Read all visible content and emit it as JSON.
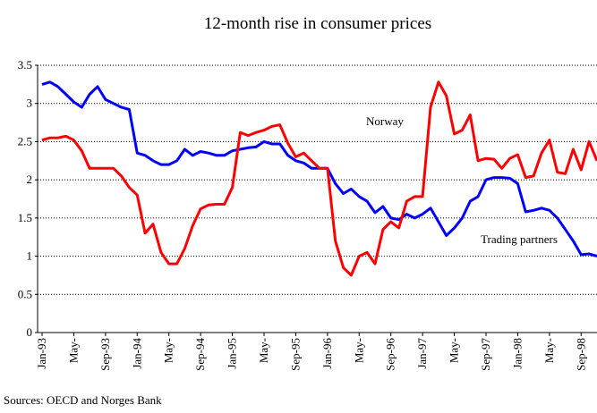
{
  "chart_data": {
    "type": "line",
    "title": "12-month rise in consumer prices",
    "source": "Sources: OECD and Norges Bank",
    "annotations": [
      "Norway",
      "Trading partners"
    ],
    "categories": [
      "Jan-93",
      null,
      null,
      null,
      "May-",
      null,
      null,
      null,
      "Sep-93",
      null,
      null,
      null,
      "Jan-94",
      null,
      null,
      null,
      "May-",
      null,
      null,
      null,
      "Sep-94",
      null,
      null,
      null,
      "Jan-95",
      null,
      null,
      null,
      "May-",
      null,
      null,
      null,
      "Sep-95",
      null,
      null,
      null,
      "Jan-96",
      null,
      null,
      null,
      "May-",
      null,
      null,
      null,
      "Sep-96",
      null,
      null,
      null,
      "Jan-97",
      null,
      null,
      null,
      "May-",
      null,
      null,
      null,
      "Sep-97",
      null,
      null,
      null,
      "Jan-98",
      null,
      null,
      null,
      "May-",
      null,
      null,
      null,
      "Sep-98",
      null,
      null
    ],
    "series": [
      {
        "name": "Trading partners",
        "color": "#0000ff",
        "values": [
          3.25,
          3.28,
          3.22,
          3.12,
          3.02,
          2.95,
          3.12,
          3.22,
          3.05,
          3.0,
          2.95,
          2.92,
          2.35,
          2.32,
          2.25,
          2.2,
          2.2,
          2.25,
          2.4,
          2.32,
          2.37,
          2.35,
          2.32,
          2.32,
          2.38,
          2.4,
          2.42,
          2.43,
          2.5,
          2.47,
          2.47,
          2.32,
          2.25,
          2.22,
          2.15,
          2.15,
          2.15,
          1.95,
          1.82,
          1.88,
          1.78,
          1.72,
          1.57,
          1.65,
          1.5,
          1.48,
          1.55,
          1.5,
          1.55,
          1.63,
          1.45,
          1.27,
          1.37,
          1.5,
          1.72,
          1.78,
          2.0,
          2.03,
          2.03,
          2.02,
          1.95,
          1.58,
          1.6,
          1.63,
          1.6,
          1.5,
          1.35,
          1.2,
          1.02,
          1.03,
          1.0
        ]
      },
      {
        "name": "Norway",
        "color": "#ff0000",
        "values": [
          2.52,
          2.55,
          2.55,
          2.57,
          2.52,
          2.38,
          2.15,
          2.15,
          2.15,
          2.15,
          2.05,
          1.9,
          1.8,
          1.3,
          1.42,
          1.05,
          0.9,
          0.9,
          1.1,
          1.4,
          1.62,
          1.67,
          1.68,
          1.68,
          1.9,
          2.62,
          2.58,
          2.62,
          2.65,
          2.7,
          2.72,
          2.48,
          2.3,
          2.35,
          2.25,
          2.15,
          2.15,
          1.2,
          0.85,
          0.75,
          1.0,
          1.05,
          0.9,
          1.35,
          1.45,
          1.37,
          1.72,
          1.78,
          1.78,
          2.95,
          3.28,
          3.1,
          2.6,
          2.65,
          2.85,
          2.25,
          2.28,
          2.27,
          2.15,
          2.28,
          2.33,
          2.03,
          2.05,
          2.35,
          2.52,
          2.1,
          2.08,
          2.4,
          2.13,
          2.5,
          2.25
        ]
      }
    ],
    "ylim": [
      0,
      3.5
    ],
    "yticks": [
      0,
      0.5,
      1,
      1.5,
      2,
      2.5,
      3,
      3.5
    ],
    "grid": true
  }
}
